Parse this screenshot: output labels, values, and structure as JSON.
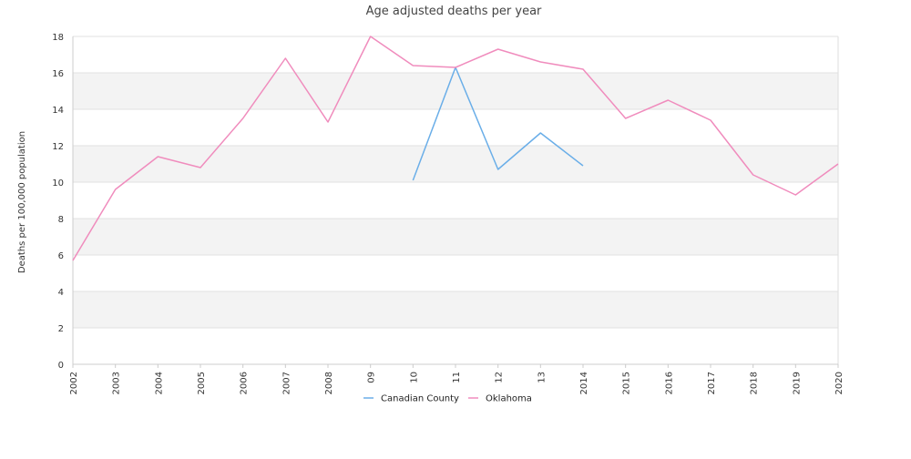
{
  "chart_data": {
    "type": "line",
    "title": "Age adjusted deaths per year",
    "ylabel": "Deaths per 100,000 population",
    "xlabel": "",
    "categories": [
      "2002",
      "2003",
      "2004",
      "2005",
      "2006",
      "2007",
      "2008",
      "09",
      "10",
      "11",
      "12",
      "13",
      "2014",
      "2015",
      "2016",
      "2017",
      "2018",
      "2019",
      "2020"
    ],
    "ylim": [
      0,
      18
    ],
    "yticks": [
      0,
      2,
      4,
      6,
      8,
      10,
      12,
      14,
      16,
      18
    ],
    "grid": true,
    "legend_position": "bottom",
    "series": [
      {
        "name": "Canadian County",
        "color": "#6aaee8",
        "values": [
          null,
          null,
          null,
          null,
          null,
          null,
          null,
          null,
          10.1,
          16.3,
          10.7,
          12.7,
          10.9,
          null,
          null,
          null,
          null,
          null,
          null
        ]
      },
      {
        "name": "Oklahoma",
        "color": "#f08cbd",
        "values": [
          5.7,
          9.6,
          11.4,
          10.8,
          13.5,
          16.8,
          13.3,
          18.0,
          16.4,
          16.3,
          17.3,
          16.6,
          16.2,
          13.5,
          14.5,
          13.4,
          10.4,
          9.3,
          11.0
        ]
      }
    ]
  }
}
